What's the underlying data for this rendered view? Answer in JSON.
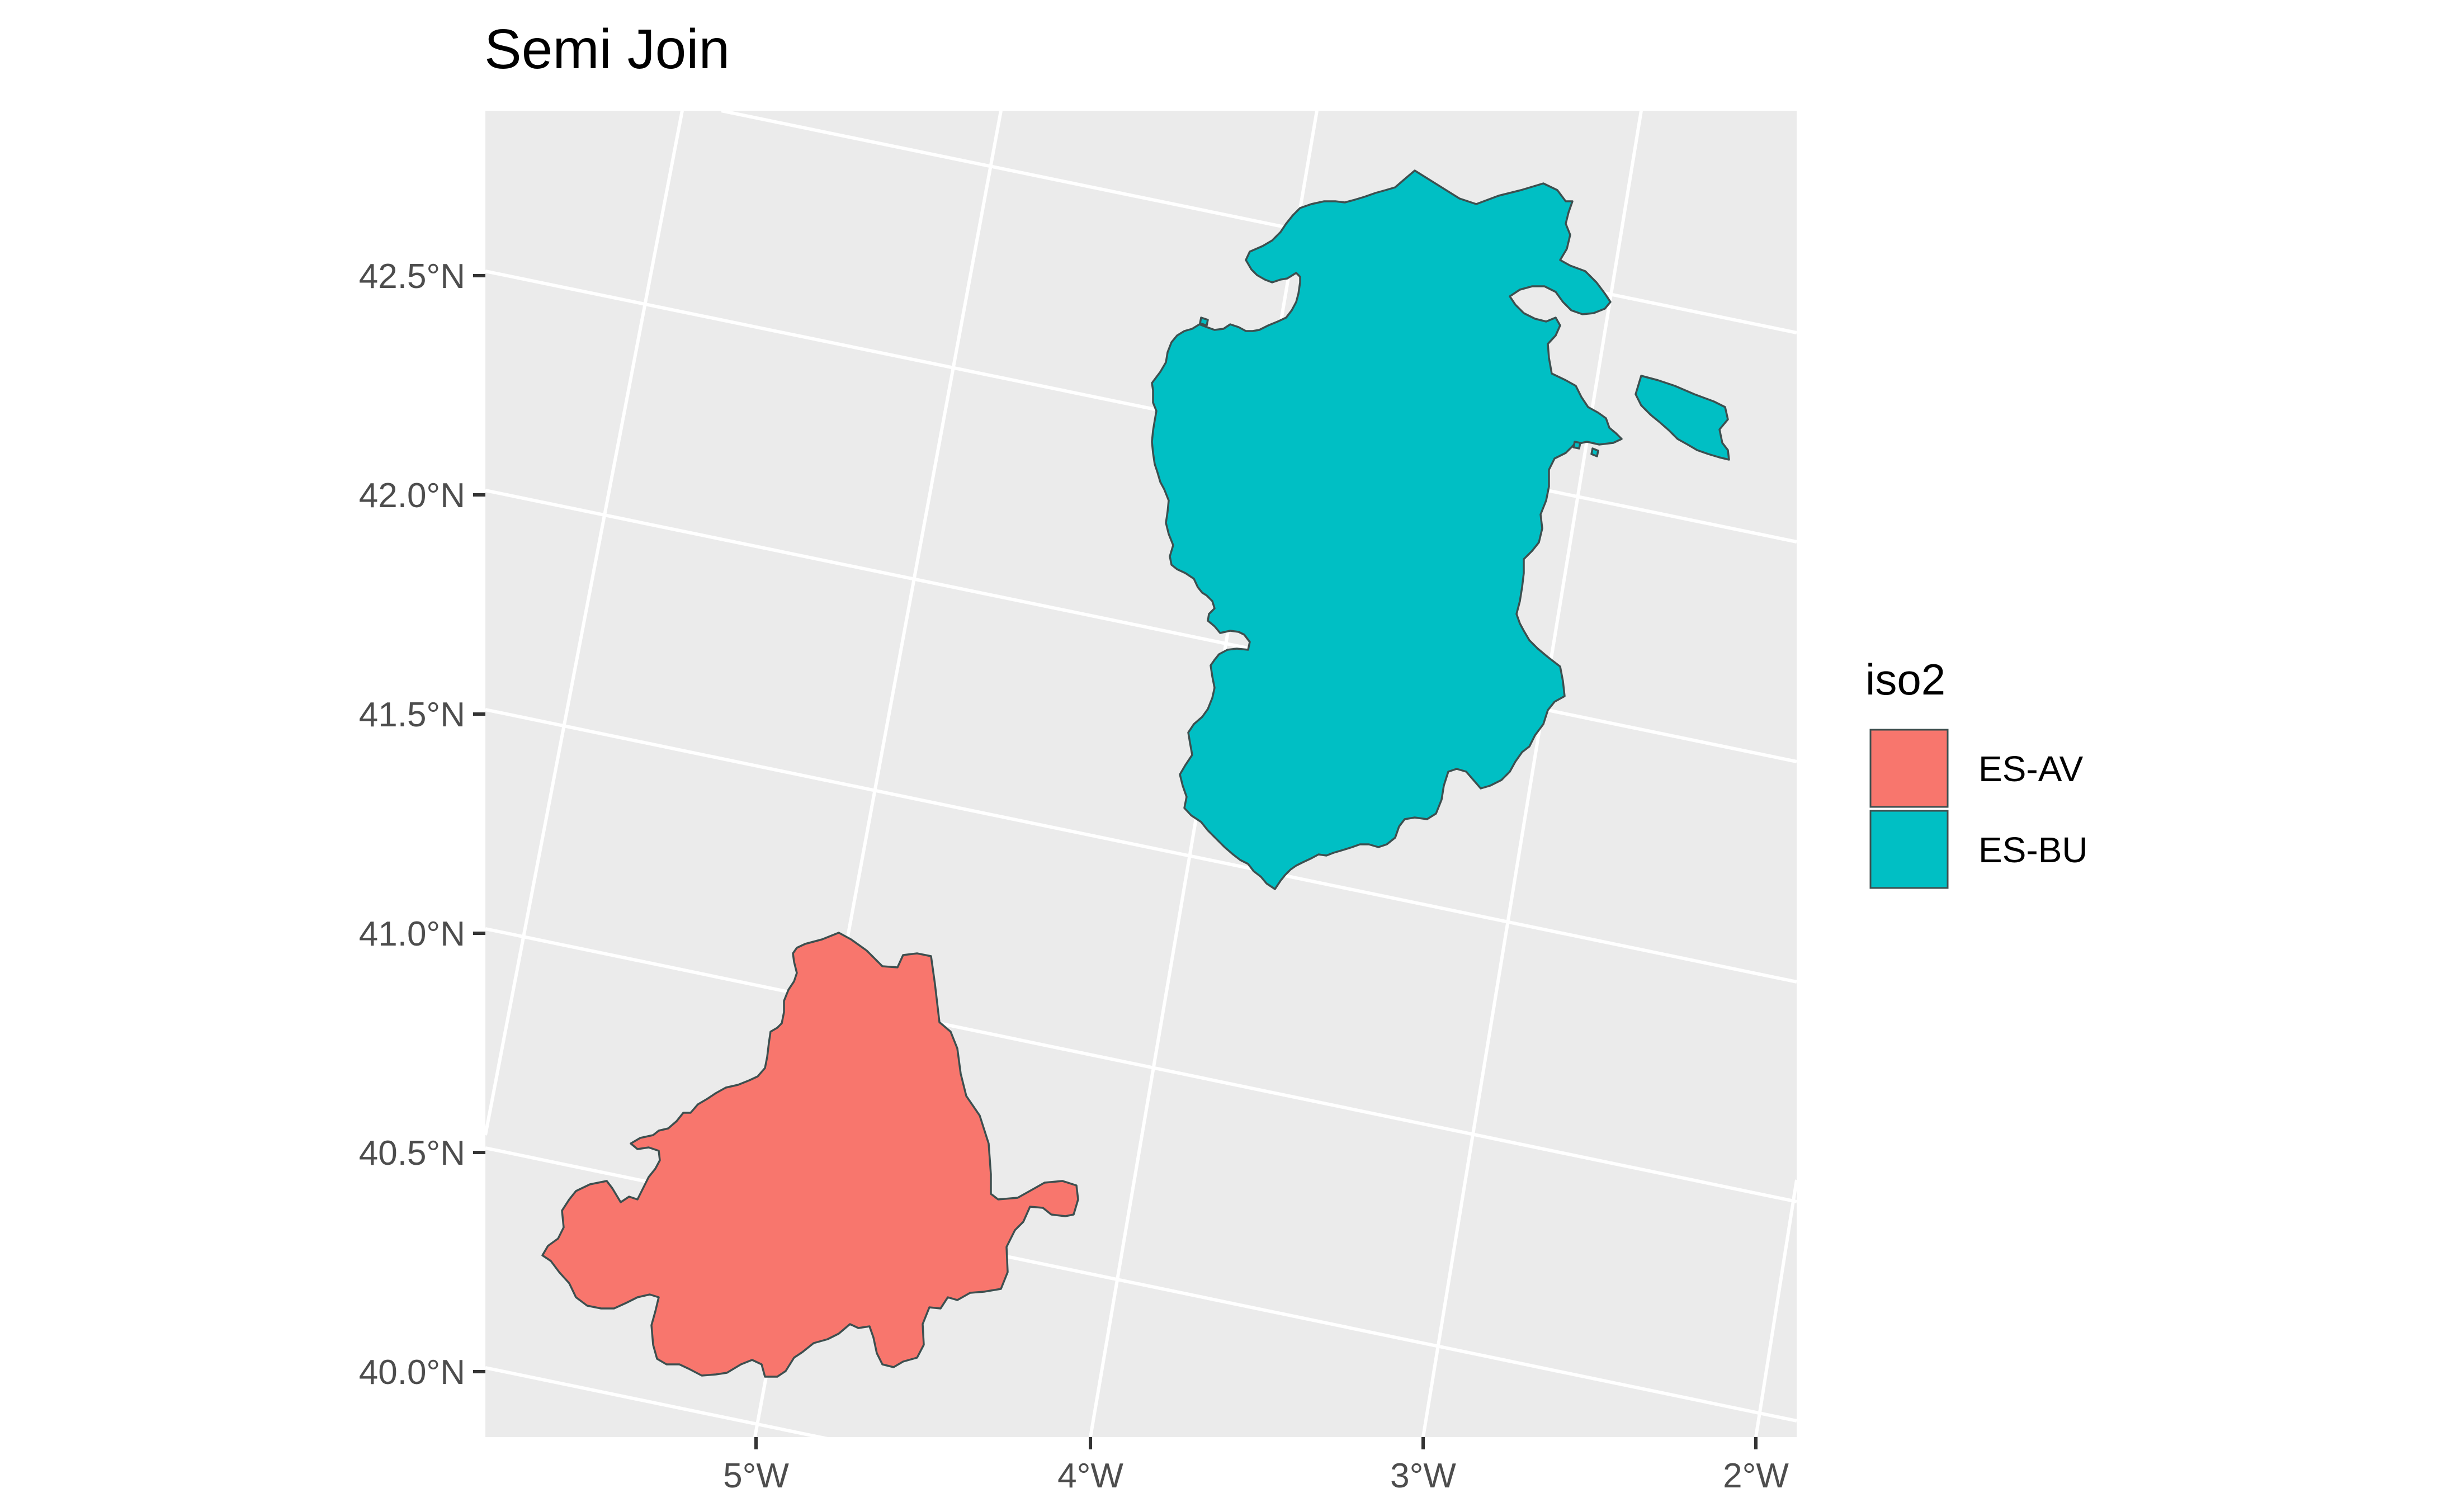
{
  "title": "Semi Join",
  "chart_data": {
    "type": "map",
    "title": "Semi Join",
    "lat_ticks": [
      "42.5°N",
      "42.0°N",
      "41.5°N",
      "41.0°N",
      "40.5°N",
      "40.0°N"
    ],
    "lon_ticks": [
      "5°W",
      "4°W",
      "3°W",
      "2°W"
    ],
    "legend": {
      "title": "iso2",
      "placement": "right",
      "entries": [
        {
          "label": "ES-AV",
          "color": "#F8766D"
        },
        {
          "label": "ES-BU",
          "color": "#00BFC4"
        }
      ]
    },
    "regions": [
      {
        "iso2": "ES-AV",
        "color": "#F8766D"
      },
      {
        "iso2": "ES-BU",
        "color": "#00BFC4"
      }
    ],
    "panel_background": "#EBEBEB",
    "grid_color": "#FFFFFF"
  }
}
